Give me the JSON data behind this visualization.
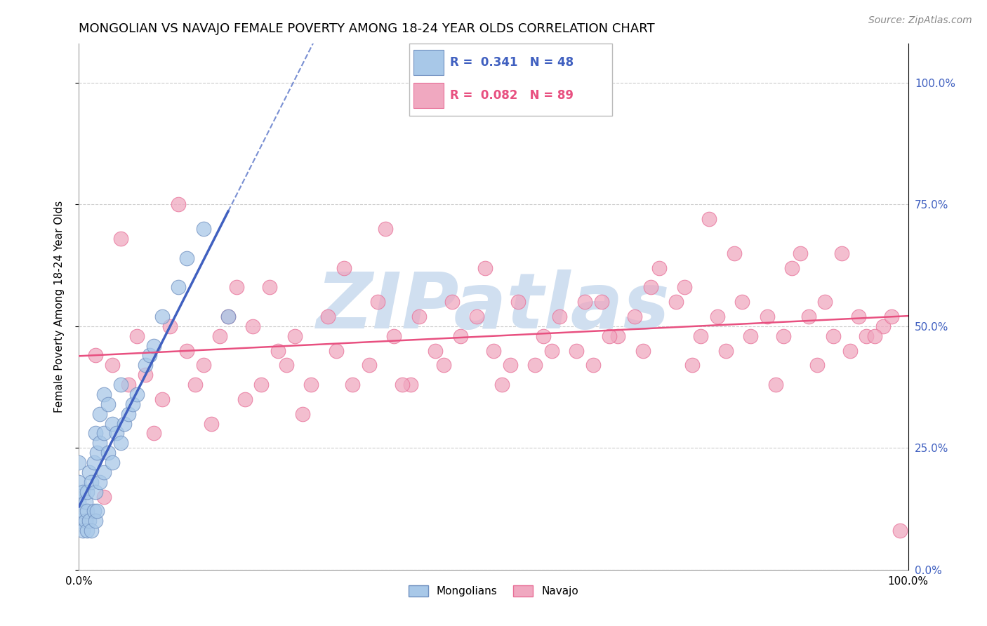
{
  "title": "MONGOLIAN VS NAVAJO FEMALE POVERTY AMONG 18-24 YEAR OLDS CORRELATION CHART",
  "source": "Source: ZipAtlas.com",
  "ylabel": "Female Poverty Among 18-24 Year Olds",
  "xlim": [
    0.0,
    1.0
  ],
  "ylim": [
    0.0,
    1.08
  ],
  "yticks": [
    0.0,
    0.25,
    0.5,
    0.75,
    1.0
  ],
  "right_ytick_labels": [
    "0.0%",
    "25.0%",
    "50.0%",
    "75.0%",
    "100.0%"
  ],
  "xtick_labels": [
    "0.0%",
    "100.0%"
  ],
  "mongolian_R": 0.341,
  "mongolian_N": 48,
  "navajo_R": 0.082,
  "navajo_N": 89,
  "blue_color": "#a8c8e8",
  "pink_color": "#f0a8c0",
  "blue_edge_color": "#7090c0",
  "pink_edge_color": "#e87098",
  "blue_line_color": "#4060c0",
  "pink_line_color": "#e85080",
  "watermark": "ZIPatlas",
  "watermark_color": "#d0dff0",
  "legend_blue_label": "Mongolians",
  "legend_pink_label": "Navajo",
  "mongolian_scatter_x": [
    0.0,
    0.0,
    0.0,
    0.0,
    0.005,
    0.005,
    0.005,
    0.008,
    0.008,
    0.01,
    0.01,
    0.01,
    0.012,
    0.012,
    0.015,
    0.015,
    0.018,
    0.018,
    0.02,
    0.02,
    0.02,
    0.022,
    0.022,
    0.025,
    0.025,
    0.025,
    0.03,
    0.03,
    0.03,
    0.035,
    0.035,
    0.04,
    0.04,
    0.045,
    0.05,
    0.05,
    0.055,
    0.06,
    0.065,
    0.07,
    0.08,
    0.085,
    0.09,
    0.1,
    0.12,
    0.13,
    0.15,
    0.18
  ],
  "mongolian_scatter_y": [
    0.1,
    0.14,
    0.18,
    0.22,
    0.08,
    0.12,
    0.16,
    0.1,
    0.14,
    0.08,
    0.12,
    0.16,
    0.1,
    0.2,
    0.08,
    0.18,
    0.12,
    0.22,
    0.1,
    0.16,
    0.28,
    0.12,
    0.24,
    0.18,
    0.26,
    0.32,
    0.2,
    0.28,
    0.36,
    0.24,
    0.34,
    0.22,
    0.3,
    0.28,
    0.26,
    0.38,
    0.3,
    0.32,
    0.34,
    0.36,
    0.42,
    0.44,
    0.46,
    0.52,
    0.58,
    0.64,
    0.7,
    0.52
  ],
  "navajo_scatter_x": [
    0.02,
    0.04,
    0.06,
    0.07,
    0.08,
    0.1,
    0.11,
    0.13,
    0.14,
    0.15,
    0.17,
    0.18,
    0.2,
    0.21,
    0.22,
    0.24,
    0.25,
    0.26,
    0.28,
    0.3,
    0.31,
    0.33,
    0.35,
    0.36,
    0.38,
    0.4,
    0.41,
    0.43,
    0.44,
    0.46,
    0.48,
    0.5,
    0.51,
    0.53,
    0.55,
    0.56,
    0.58,
    0.6,
    0.62,
    0.63,
    0.65,
    0.67,
    0.68,
    0.7,
    0.72,
    0.73,
    0.75,
    0.77,
    0.78,
    0.8,
    0.81,
    0.83,
    0.85,
    0.86,
    0.88,
    0.9,
    0.91,
    0.92,
    0.94,
    0.95,
    0.97,
    0.98,
    0.19,
    0.32,
    0.45,
    0.57,
    0.69,
    0.79,
    0.89,
    0.96,
    0.03,
    0.09,
    0.16,
    0.27,
    0.39,
    0.52,
    0.64,
    0.74,
    0.84,
    0.93,
    0.05,
    0.12,
    0.23,
    0.37,
    0.49,
    0.61,
    0.76,
    0.87,
    0.99
  ],
  "navajo_scatter_y": [
    0.44,
    0.42,
    0.38,
    0.48,
    0.4,
    0.35,
    0.5,
    0.45,
    0.38,
    0.42,
    0.48,
    0.52,
    0.35,
    0.5,
    0.38,
    0.45,
    0.42,
    0.48,
    0.38,
    0.52,
    0.45,
    0.38,
    0.42,
    0.55,
    0.48,
    0.38,
    0.52,
    0.45,
    0.42,
    0.48,
    0.52,
    0.45,
    0.38,
    0.55,
    0.42,
    0.48,
    0.52,
    0.45,
    0.42,
    0.55,
    0.48,
    0.52,
    0.45,
    0.62,
    0.55,
    0.58,
    0.48,
    0.52,
    0.45,
    0.55,
    0.48,
    0.52,
    0.48,
    0.62,
    0.52,
    0.55,
    0.48,
    0.65,
    0.52,
    0.48,
    0.5,
    0.52,
    0.58,
    0.62,
    0.55,
    0.45,
    0.58,
    0.65,
    0.42,
    0.48,
    0.15,
    0.28,
    0.3,
    0.32,
    0.38,
    0.42,
    0.48,
    0.42,
    0.38,
    0.45,
    0.68,
    0.75,
    0.58,
    0.7,
    0.62,
    0.55,
    0.72,
    0.65,
    0.08
  ]
}
